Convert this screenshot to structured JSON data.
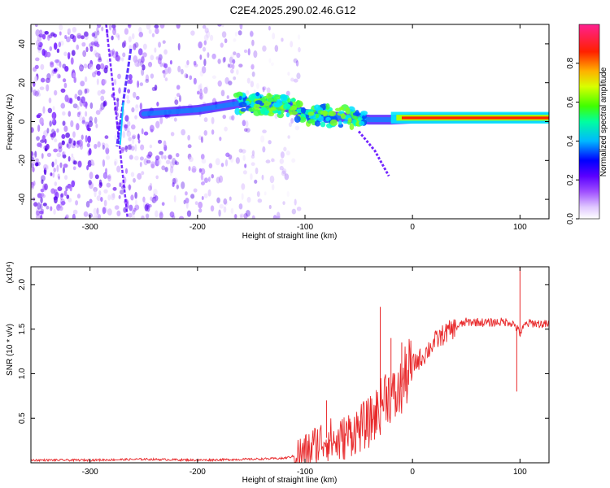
{
  "title": "C2E4.2025.290.02.46.G12",
  "chart_data": [
    {
      "type": "heatmap",
      "name": "spectrogram",
      "xlabel": "Height of straight line (km)",
      "ylabel": "Frequency (Hz)",
      "xlim": [
        -355,
        127
      ],
      "ylim": [
        -50,
        50
      ],
      "xticks": [
        -300,
        -200,
        -100,
        0,
        100
      ],
      "yticks": [
        -40,
        -20,
        0,
        20,
        40
      ],
      "xtick_labels": [
        "-300",
        "-200",
        "-100",
        "0",
        "100"
      ],
      "ytick_labels": [
        "-40",
        "-20",
        "0",
        "20",
        "40"
      ],
      "colorbar": {
        "label": "Normalized spectral amplitude",
        "range": [
          0.0,
          1.0
        ],
        "ticks": [
          0.0,
          0.2,
          0.4,
          0.6,
          0.8
        ],
        "tick_labels": [
          "0.0",
          "0.2",
          "0.4",
          "0.6",
          "0.8"
        ],
        "colors": [
          "#ffffff",
          "#d8b8ff",
          "#9f4fff",
          "#5a00ff",
          "#0000ff",
          "#00c8ff",
          "#00ff60",
          "#c8ff00",
          "#ffd000",
          "#ff5000",
          "#ff0000",
          "#ff2090"
        ]
      },
      "features": {
        "noise_region_x": [
          -355,
          -125
        ],
        "vertical_streak": {
          "x_at_top": -285,
          "x_at_bottom": -265
        },
        "vertical_streak_2": {
          "x_at_top": -262,
          "x_at_bottom": -275
        },
        "signal_track": [
          {
            "x": -250,
            "f": 4
          },
          {
            "x": -200,
            "f": 6
          },
          {
            "x": -155,
            "f": 10
          },
          {
            "x": -120,
            "f": 8
          },
          {
            "x": -100,
            "f": 4
          },
          {
            "x": -80,
            "f": 3
          },
          {
            "x": -60,
            "f": 2
          },
          {
            "x": -40,
            "f": 1
          },
          {
            "x": -20,
            "f": 1
          },
          {
            "x": 0,
            "f": 1.5
          },
          {
            "x": 127,
            "f": 2
          }
        ],
        "branch": [
          {
            "x": -50,
            "f": -5
          },
          {
            "x": -35,
            "f": -15
          },
          {
            "x": -22,
            "f": -28
          }
        ]
      }
    },
    {
      "type": "line",
      "name": "snr",
      "xlabel": "Height of straight line (km)",
      "ylabel": "SNR (10 * v/v)",
      "exponent_label": "(x10⁴)",
      "xlim": [
        -355,
        127
      ],
      "ylim": [
        0.0,
        2.2
      ],
      "xticks": [
        -300,
        -200,
        -100,
        0,
        100
      ],
      "yticks": [
        0.5,
        1.0,
        1.5,
        2.0
      ],
      "xtick_labels": [
        "-300",
        "-200",
        "-100",
        "0",
        "100"
      ],
      "ytick_labels": [
        "0.5",
        "1.0",
        "1.5",
        "2.0"
      ],
      "color": "#e8282a",
      "series": [
        {
          "name": "SNR",
          "x": [
            -355,
            -300,
            -250,
            -200,
            -150,
            -120,
            -100,
            -90,
            -80,
            -70,
            -60,
            -50,
            -40,
            -30,
            -25,
            -20,
            -15,
            -10,
            -5,
            0,
            10,
            20,
            30,
            40,
            50,
            60,
            70,
            80,
            90,
            95,
            100,
            105,
            110,
            127
          ],
          "y": [
            0.03,
            0.03,
            0.04,
            0.03,
            0.04,
            0.05,
            0.1,
            0.2,
            0.28,
            0.22,
            0.32,
            0.38,
            0.45,
            0.62,
            0.8,
            0.75,
            0.72,
            0.85,
            1.0,
            1.1,
            1.2,
            1.35,
            1.45,
            1.52,
            1.58,
            1.58,
            1.57,
            1.58,
            1.58,
            1.55,
            1.45,
            1.55,
            1.57,
            1.55
          ]
        }
      ],
      "spikes": [
        {
          "x": -30,
          "y": 1.75
        },
        {
          "x": -80,
          "y": 0.7
        },
        {
          "x": 100,
          "y": 2.2
        },
        {
          "x": 97,
          "y": 0.8
        },
        {
          "x": -20,
          "y": 1.4
        },
        {
          "x": -10,
          "y": 1.35
        }
      ]
    }
  ]
}
